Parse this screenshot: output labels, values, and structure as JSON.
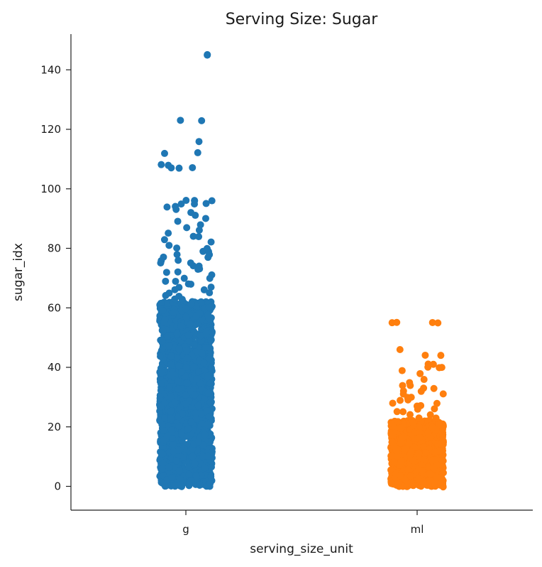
{
  "chart_data": {
    "type": "scatter",
    "subtype": "strip",
    "title": "Serving Size: Sugar",
    "xlabel": "serving_size_unit",
    "ylabel": "sugar_idx",
    "categories": [
      "g",
      "ml"
    ],
    "ylim": [
      -8,
      152
    ],
    "yticks": [
      0,
      20,
      40,
      60,
      80,
      100,
      120,
      140
    ],
    "grid": false,
    "legend": "none",
    "series": [
      {
        "category": "g",
        "color": "#1f77b4",
        "dense_range": [
          0,
          62
        ],
        "values": [
          145,
          145,
          123,
          123,
          116,
          112,
          112,
          108,
          108,
          107,
          107,
          107,
          96,
          96,
          96,
          96,
          95,
          95,
          95,
          94,
          94,
          93,
          92,
          91,
          90,
          89,
          88,
          87,
          86,
          85,
          84,
          84,
          83,
          82,
          81,
          80,
          80,
          79,
          79,
          78,
          78,
          77,
          77,
          76,
          76,
          75,
          75,
          74,
          74,
          73,
          73,
          72,
          72,
          71,
          70,
          70,
          69,
          69,
          68,
          68,
          67,
          67,
          66,
          66,
          65,
          65,
          64,
          64,
          63,
          63
        ]
      },
      {
        "category": "ml",
        "color": "#ff7f0e",
        "dense_range": [
          0,
          22
        ],
        "values": [
          55,
          55,
          55,
          55,
          46,
          44,
          44,
          41,
          41,
          40,
          40,
          40,
          39,
          38,
          36,
          35,
          34,
          34,
          33,
          33,
          32,
          32,
          31,
          31,
          30,
          30,
          29,
          29,
          28,
          28,
          27,
          27,
          26,
          26,
          25,
          25,
          24,
          24,
          23,
          23
        ]
      }
    ]
  }
}
